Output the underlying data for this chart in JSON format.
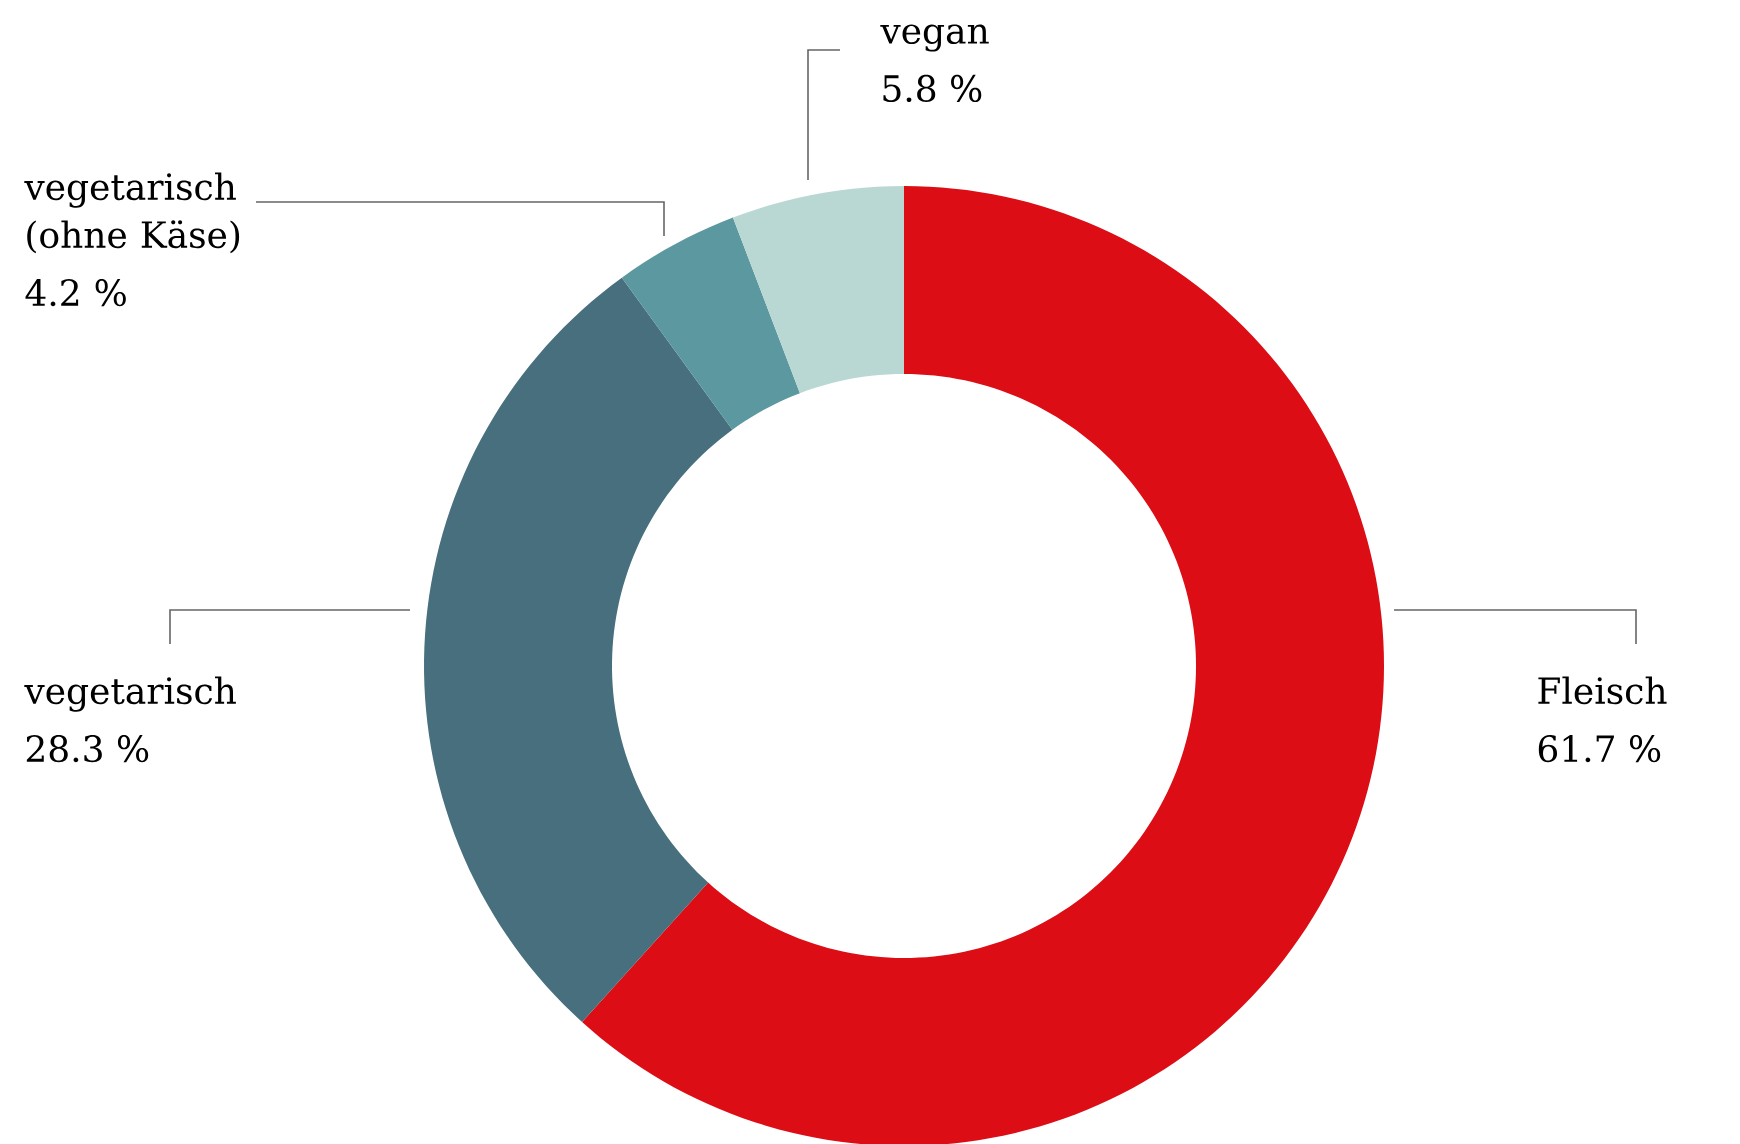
{
  "chart_data": {
    "type": "donut",
    "categories": [
      "Fleisch",
      "vegetarisch",
      "vegetarisch (ohne Käse)",
      "vegan"
    ],
    "values": [
      61.7,
      28.3,
      4.2,
      5.8
    ],
    "colors": [
      "#dc0d15",
      "#476f7e",
      "#5b98a0",
      "#bad8d3"
    ],
    "value_labels": [
      "61.7 %",
      "28.3 %",
      "4.2 %",
      "5.8 %"
    ]
  }
}
